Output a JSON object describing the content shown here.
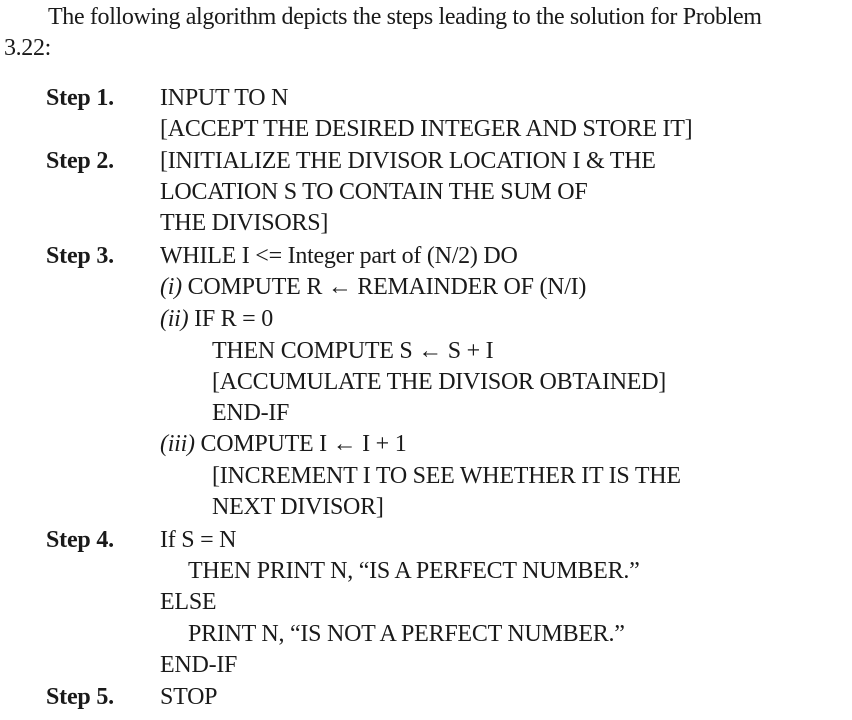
{
  "intro": {
    "line1": "The following algorithm depicts the steps leading to the solution for Problem",
    "line2": "3.22:"
  },
  "steps": [
    {
      "label": "Step 1.",
      "lines": [
        "INPUT TO N",
        "[ACCEPT THE DESIRED INTEGER AND STORE IT]"
      ]
    },
    {
      "label": "Step 2.",
      "lines": [
        "[INITIALIZE THE DIVISOR LOCATION I & THE",
        "LOCATION S TO CONTAIN THE SUM OF",
        "THE DIVISORS]"
      ]
    },
    {
      "label": "Step 3.",
      "lines": [
        "WHILE I <= Integer part of (N/2) DO",
        {
          "marker": "(i)",
          "text": " COMPUTE R ← REMAINDER OF (N/I)"
        },
        {
          "marker": "(ii)",
          "text": " IF R = 0"
        },
        "THEN COMPUTE S ← S + I",
        "[ACCUMULATE THE DIVISOR OBTAINED]",
        "END-IF",
        {
          "marker": "(iii)",
          "text": " COMPUTE I ← I + 1"
        },
        "[INCREMENT I TO SEE WHETHER IT IS THE",
        "NEXT DIVISOR]"
      ]
    },
    {
      "label": "Step 4.",
      "lines": [
        "If S = N",
        "THEN PRINT N, “IS A PERFECT NUMBER.”",
        "ELSE",
        "PRINT N, “IS NOT A PERFECT NUMBER.”",
        "END-IF"
      ]
    },
    {
      "label": "Step 5.",
      "lines": [
        "STOP"
      ]
    }
  ]
}
